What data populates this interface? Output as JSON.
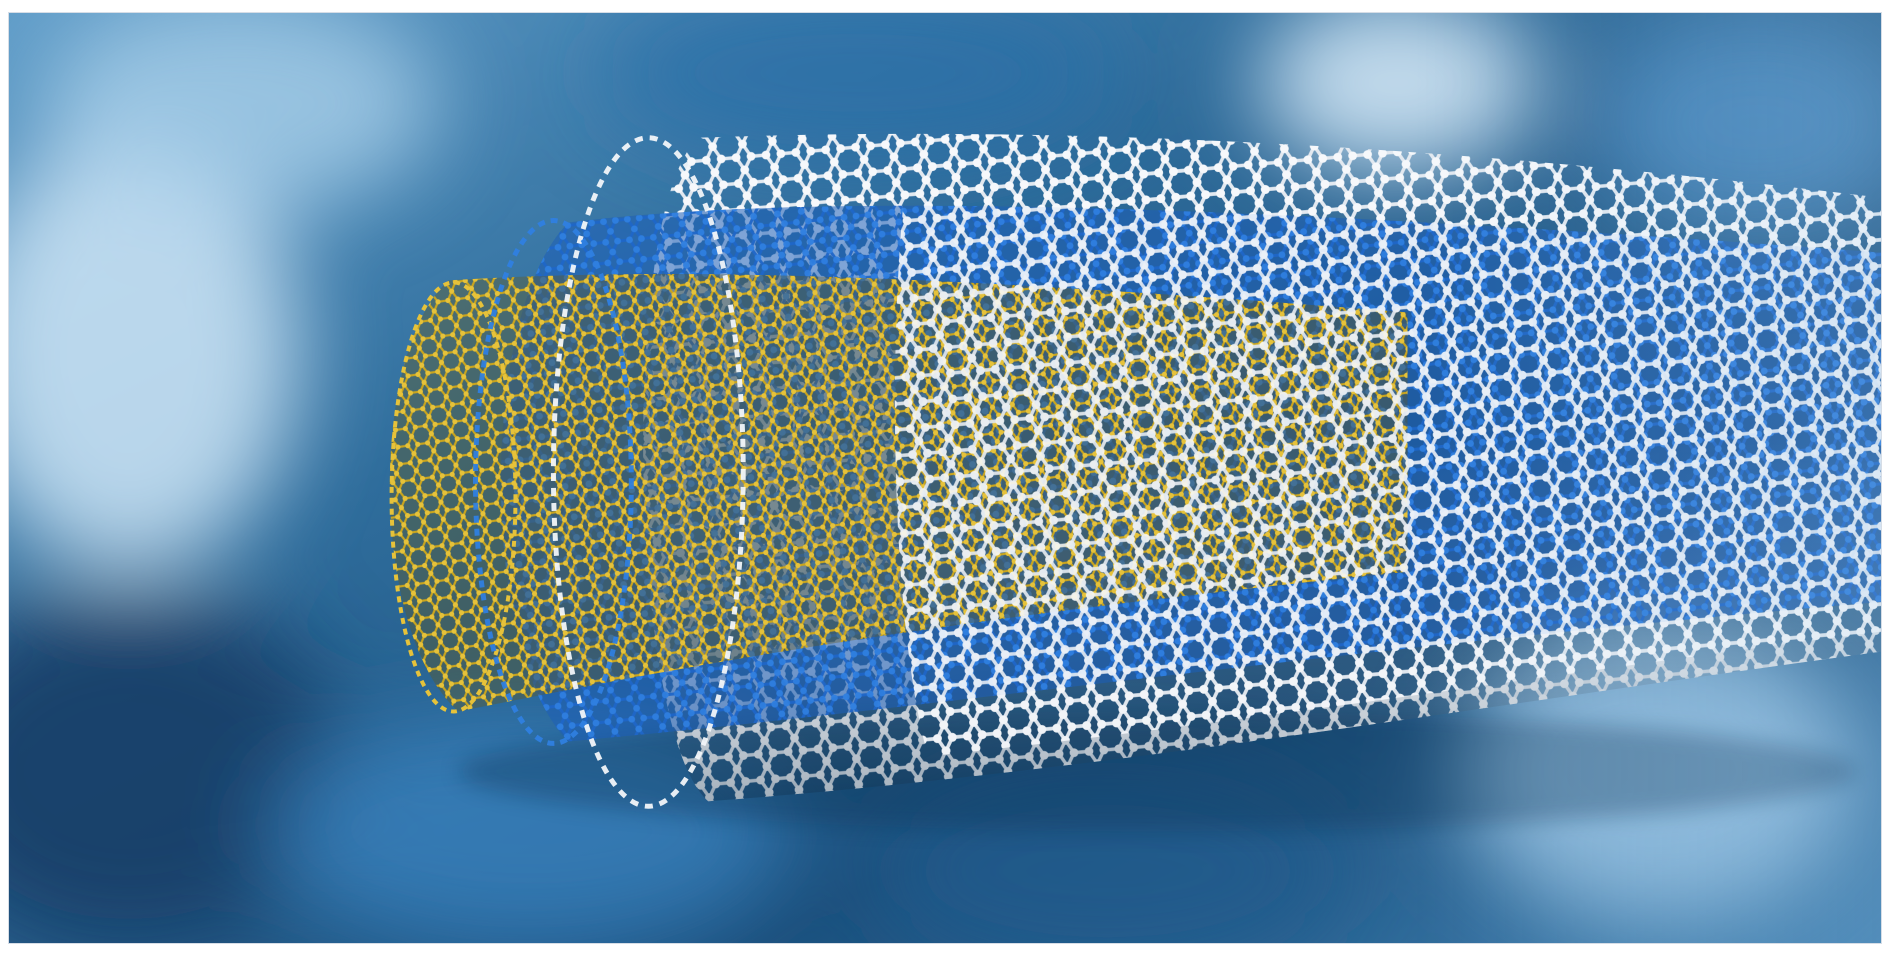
{
  "image": {
    "subject": "multi-walled-carbon-nanotube",
    "layers": [
      {
        "name": "inner",
        "color": "#e6c23a",
        "bond_color": "#c9a51e"
      },
      {
        "name": "middle",
        "color": "#2f7fe0",
        "bond_color": "#1f66c7"
      },
      {
        "name": "outer",
        "color": "#f2f5f9",
        "bond_color": "#e3e9f0"
      }
    ],
    "background": {
      "base": "#2f6d9c",
      "light": "#bfe0f6",
      "dark": "#123a5e"
    }
  }
}
